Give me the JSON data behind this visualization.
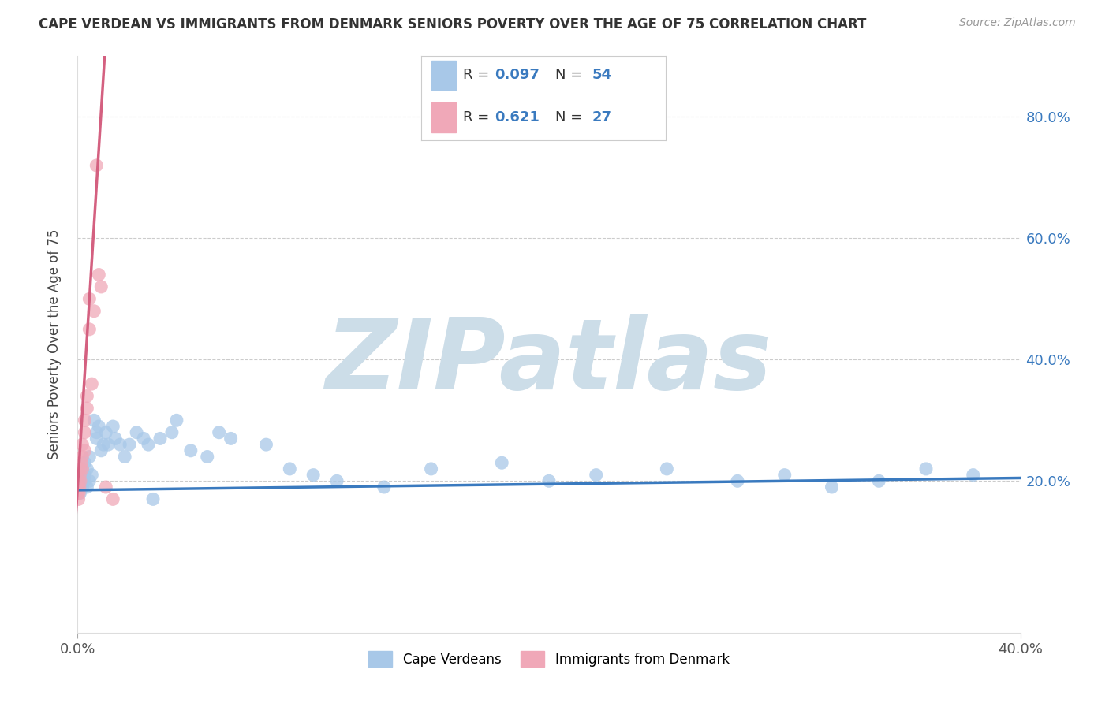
{
  "title": "CAPE VERDEAN VS IMMIGRANTS FROM DENMARK SENIORS POVERTY OVER THE AGE OF 75 CORRELATION CHART",
  "source": "Source: ZipAtlas.com",
  "ylabel": "Seniors Poverty Over the Age of 75",
  "watermark": "ZIPatlas",
  "blue_R": 0.097,
  "blue_N": 54,
  "pink_R": 0.621,
  "pink_N": 27,
  "blue_color": "#a8c8e8",
  "pink_color": "#f0a8b8",
  "blue_trend_color": "#3a7abf",
  "pink_trend_color": "#d46080",
  "legend1_label": "Cape Verdeans",
  "legend2_label": "Immigrants from Denmark",
  "xlim": [
    0.0,
    0.4
  ],
  "ylim": [
    -0.05,
    0.9
  ],
  "yticks": [
    0.2,
    0.4,
    0.6,
    0.8
  ],
  "ytick_labels": [
    "20.0%",
    "40.0%",
    "60.0%",
    "80.0%"
  ],
  "xtick_left": "0.0%",
  "xtick_right": "40.0%",
  "background_color": "#ffffff",
  "grid_color": "#cccccc",
  "watermark_color": "#ccdde8",
  "blue_scatter_x": [
    0.0005,
    0.001,
    0.001,
    0.002,
    0.002,
    0.002,
    0.003,
    0.003,
    0.003,
    0.004,
    0.004,
    0.005,
    0.005,
    0.006,
    0.007,
    0.008,
    0.008,
    0.009,
    0.01,
    0.011,
    0.012,
    0.013,
    0.015,
    0.016,
    0.018,
    0.02,
    0.022,
    0.025,
    0.028,
    0.03,
    0.032,
    0.035,
    0.04,
    0.042,
    0.048,
    0.055,
    0.06,
    0.065,
    0.08,
    0.09,
    0.1,
    0.11,
    0.13,
    0.15,
    0.18,
    0.2,
    0.22,
    0.25,
    0.28,
    0.3,
    0.32,
    0.34,
    0.36,
    0.38
  ],
  "blue_scatter_y": [
    0.19,
    0.18,
    0.2,
    0.19,
    0.21,
    0.22,
    0.2,
    0.21,
    0.23,
    0.19,
    0.22,
    0.2,
    0.24,
    0.21,
    0.3,
    0.27,
    0.28,
    0.29,
    0.25,
    0.26,
    0.28,
    0.26,
    0.29,
    0.27,
    0.26,
    0.24,
    0.26,
    0.28,
    0.27,
    0.26,
    0.17,
    0.27,
    0.28,
    0.3,
    0.25,
    0.24,
    0.28,
    0.27,
    0.26,
    0.22,
    0.21,
    0.2,
    0.19,
    0.22,
    0.23,
    0.2,
    0.21,
    0.22,
    0.2,
    0.21,
    0.19,
    0.2,
    0.22,
    0.21
  ],
  "pink_scatter_x": [
    0.0002,
    0.0003,
    0.0004,
    0.0005,
    0.0006,
    0.0008,
    0.001,
    0.001,
    0.0012,
    0.0015,
    0.002,
    0.002,
    0.002,
    0.003,
    0.003,
    0.003,
    0.004,
    0.004,
    0.005,
    0.005,
    0.006,
    0.007,
    0.008,
    0.009,
    0.01,
    0.012,
    0.015
  ],
  "pink_scatter_y": [
    0.18,
    0.19,
    0.17,
    0.2,
    0.18,
    0.19,
    0.21,
    0.22,
    0.2,
    0.23,
    0.22,
    0.24,
    0.26,
    0.25,
    0.28,
    0.3,
    0.32,
    0.34,
    0.45,
    0.5,
    0.36,
    0.48,
    0.72,
    0.54,
    0.52,
    0.19,
    0.17
  ],
  "blue_trend_x": [
    0.0,
    0.4
  ],
  "blue_trend_y": [
    0.185,
    0.205
  ],
  "pink_trend_x_start": -0.001,
  "pink_trend_x_end": 0.012,
  "pink_trend_slope": 62.0,
  "pink_trend_intercept": 0.19
}
